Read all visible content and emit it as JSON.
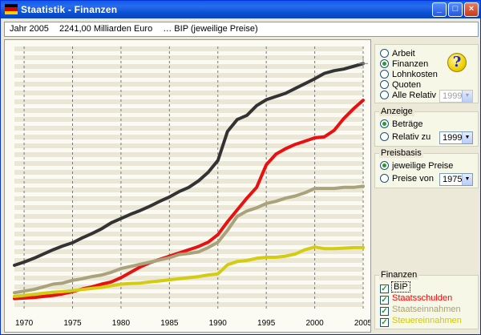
{
  "window": {
    "title": "Staatistik  - Finanzen",
    "flag_colors": [
      "#000000",
      "#dd0000",
      "#ffcc00"
    ],
    "buttons": {
      "minimize": "_",
      "maximize": "□",
      "close": "×"
    }
  },
  "info": {
    "year": "Jahr 2005",
    "value": "2241,00 Milliarden Euro",
    "series": "… BIP (jeweilige Preise)"
  },
  "category": {
    "options": [
      "Arbeit",
      "Finanzen",
      "Lohnkosten",
      "Quoten",
      "Alle Relativ"
    ],
    "selected": "Finanzen",
    "help_icon": "?",
    "relativ_year": "1999"
  },
  "anzeige": {
    "label": "Anzeige",
    "options": [
      "Beträge",
      "Relativ zu"
    ],
    "selected": "Beträge",
    "relativ_year": "1999"
  },
  "preisbasis": {
    "label": "Preisbasis",
    "options": [
      "jeweilige Preise",
      "Preise von"
    ],
    "selected": "jeweilige Preise",
    "preise_year": "1975"
  },
  "finanzen": {
    "label": "Finanzen",
    "items": [
      {
        "label": "BIP",
        "color": "#000000",
        "checked": true
      },
      {
        "label": "Staatsschulden",
        "color": "#ff0000",
        "checked": true
      },
      {
        "label": "Staatseinnahmen",
        "color": "#a8a070",
        "checked": true
      },
      {
        "label": "Steuereinnahmen",
        "color": "#d0c800",
        "checked": true
      }
    ]
  },
  "chart_data": {
    "type": "line",
    "x": [
      1969,
      1970,
      1971,
      1972,
      1973,
      1974,
      1975,
      1976,
      1977,
      1978,
      1979,
      1980,
      1981,
      1982,
      1983,
      1984,
      1985,
      1986,
      1987,
      1988,
      1989,
      1990,
      1991,
      1992,
      1993,
      1994,
      1995,
      1996,
      1997,
      1998,
      1999,
      2000,
      2001,
      2002,
      2003,
      2004,
      2005
    ],
    "x_ticks": [
      "1970",
      "1975",
      "1980",
      "1985",
      "1990",
      "1995",
      "2000",
      "2005"
    ],
    "xlim": [
      1969,
      2005
    ],
    "ylim": [
      0,
      2400
    ],
    "grid": true,
    "series": [
      {
        "name": "BIP",
        "color": "#333333",
        "values": [
          365,
          395,
          430,
          470,
          510,
          545,
          575,
          620,
          660,
          705,
          760,
          800,
          840,
          875,
          915,
          960,
          1000,
          1050,
          1090,
          1150,
          1230,
          1340,
          1610,
          1720,
          1760,
          1850,
          1905,
          1935,
          1965,
          2010,
          2055,
          2100,
          2150,
          2175,
          2190,
          2215,
          2241
        ]
      },
      {
        "name": "Staatsschulden",
        "color": "#e81010",
        "values": [
          55,
          60,
          65,
          75,
          85,
          100,
          120,
          145,
          165,
          190,
          210,
          250,
          300,
          350,
          390,
          420,
          450,
          480,
          510,
          540,
          580,
          650,
          770,
          880,
          990,
          1090,
          1300,
          1400,
          1450,
          1490,
          1520,
          1550,
          1560,
          1620,
          1730,
          1820,
          1900
        ]
      },
      {
        "name": "Staatseinnahmen",
        "color": "#aaa27a",
        "values": [
          110,
          125,
          140,
          165,
          190,
          200,
          225,
          240,
          260,
          275,
          300,
          335,
          355,
          375,
          395,
          415,
          435,
          465,
          475,
          490,
          530,
          580,
          690,
          820,
          870,
          900,
          940,
          960,
          990,
          1010,
          1040,
          1080,
          1080,
          1080,
          1090,
          1090,
          1100
        ]
      },
      {
        "name": "Steuereinnahmen",
        "color": "#d4cc10",
        "values": [
          75,
          85,
          95,
          105,
          115,
          120,
          130,
          140,
          150,
          160,
          175,
          190,
          195,
          200,
          210,
          220,
          230,
          240,
          250,
          260,
          275,
          285,
          370,
          400,
          410,
          430,
          440,
          440,
          450,
          470,
          510,
          535,
          520,
          520,
          525,
          530,
          530
        ]
      }
    ]
  }
}
